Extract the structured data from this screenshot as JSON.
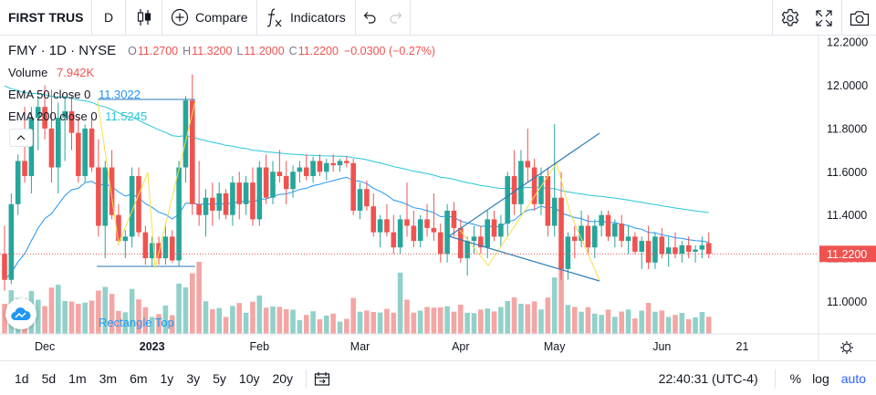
{
  "toolbar": {
    "symbol": "FIRST TRUS",
    "interval": "D",
    "compare_label": "Compare",
    "indicators_label": "Indicators",
    "icons": [
      "candlestick-icon",
      "plus-circle-icon",
      "fx-icon",
      "undo-icon",
      "redo-icon",
      "gear-icon",
      "fullscreen-icon",
      "camera-icon"
    ]
  },
  "legend": {
    "symbol": "FMY",
    "interval": "1D",
    "exchange": "NYSE",
    "open_label": "O",
    "open": "11.2700",
    "high_label": "H",
    "high": "11.3200",
    "low_label": "L",
    "low": "11.2000",
    "close_label": "C",
    "close": "11.2200",
    "change": "−0.0300 (−0.27%)",
    "volume_label": "Volume",
    "volume": "7.942K",
    "ema50_label": "EMA 50 close 0",
    "ema50": "11.3022",
    "ema200_label": "EMA 200 close 0",
    "ema200": "11.5245"
  },
  "colors": {
    "up": "#26a69a",
    "down": "#ef5350",
    "ema50": "#2196f3",
    "ema200": "#26c6da",
    "drawing_yellow": "#f5e04a",
    "drawing_blue": "#2a7ab5",
    "vol_up": "#91d1c9",
    "vol_down": "#f4a6a4"
  },
  "drawing_label": "Rectangle Top",
  "last_price_label": "11.2200",
  "chart_data": {
    "type": "candlestick",
    "symbol": "FMY",
    "y_ticks": [
      "12.2000",
      "12.0000",
      "11.8000",
      "11.6000",
      "11.4000",
      "11.2000",
      "11.0000"
    ],
    "ylim": [
      10.85,
      12.23
    ],
    "x_ticks": [
      {
        "label": "Dec",
        "i": 6
      },
      {
        "label": "2023",
        "i": 22
      },
      {
        "label": "Feb",
        "i": 38
      },
      {
        "label": "Mar",
        "i": 53
      },
      {
        "label": "Apr",
        "i": 68
      },
      {
        "label": "May",
        "i": 82
      },
      {
        "label": "Jun",
        "i": 98
      },
      {
        "label": "21",
        "i": 110
      }
    ],
    "candles": [
      [
        11.22,
        11.35,
        11.05,
        11.1
      ],
      [
        11.1,
        11.5,
        11.08,
        11.45
      ],
      [
        11.45,
        11.68,
        11.4,
        11.65
      ],
      [
        11.65,
        11.9,
        11.55,
        11.58
      ],
      [
        11.58,
        11.9,
        11.5,
        11.85
      ],
      [
        11.85,
        11.95,
        11.7,
        11.9
      ],
      [
        11.9,
        12.0,
        11.75,
        11.8
      ],
      [
        11.8,
        11.98,
        11.55,
        11.62
      ],
      [
        11.62,
        11.92,
        11.5,
        11.85
      ],
      [
        11.85,
        11.95,
        11.65,
        11.88
      ],
      [
        11.88,
        11.95,
        11.7,
        11.78
      ],
      [
        11.78,
        11.85,
        11.55,
        11.58
      ],
      [
        11.58,
        11.82,
        11.55,
        11.8
      ],
      [
        11.8,
        11.85,
        11.6,
        11.62
      ],
      [
        11.62,
        11.75,
        11.3,
        11.35
      ],
      [
        11.35,
        11.65,
        11.2,
        11.62
      ],
      [
        11.62,
        11.7,
        11.38,
        11.4
      ],
      [
        11.4,
        11.45,
        11.26,
        11.28
      ],
      [
        11.28,
        11.33,
        11.2,
        11.3
      ],
      [
        11.3,
        11.62,
        11.25,
        11.58
      ],
      [
        11.58,
        11.62,
        11.3,
        11.32
      ],
      [
        11.32,
        11.35,
        11.17,
        11.2
      ],
      [
        11.2,
        11.3,
        11.16,
        11.27
      ],
      [
        11.27,
        11.3,
        11.17,
        11.2
      ],
      [
        11.2,
        11.36,
        11.17,
        11.3
      ],
      [
        11.3,
        11.33,
        11.18,
        11.19
      ],
      [
        11.19,
        11.65,
        11.16,
        11.62
      ],
      [
        11.62,
        11.95,
        11.55,
        11.93
      ],
      [
        11.93,
        12.05,
        11.4,
        11.45
      ],
      [
        11.45,
        11.65,
        11.35,
        11.4
      ],
      [
        11.4,
        11.52,
        11.3,
        11.48
      ],
      [
        11.48,
        11.55,
        11.35,
        11.42
      ],
      [
        11.42,
        11.55,
        11.38,
        11.5
      ],
      [
        11.5,
        11.52,
        11.38,
        11.4
      ],
      [
        11.4,
        11.58,
        11.35,
        11.55
      ],
      [
        11.55,
        11.6,
        11.38,
        11.45
      ],
      [
        11.45,
        11.58,
        11.4,
        11.55
      ],
      [
        11.55,
        11.62,
        11.35,
        11.38
      ],
      [
        11.38,
        11.65,
        11.35,
        11.62
      ],
      [
        11.62,
        11.68,
        11.45,
        11.48
      ],
      [
        11.48,
        11.65,
        11.45,
        11.6
      ],
      [
        11.6,
        11.7,
        11.55,
        11.58
      ],
      [
        11.58,
        11.65,
        11.45,
        11.52
      ],
      [
        11.52,
        11.63,
        11.48,
        11.6
      ],
      [
        11.6,
        11.65,
        11.55,
        11.62
      ],
      [
        11.62,
        11.68,
        11.56,
        11.58
      ],
      [
        11.58,
        11.67,
        11.55,
        11.65
      ],
      [
        11.65,
        11.68,
        11.58,
        11.6
      ],
      [
        11.6,
        11.66,
        11.56,
        11.64
      ],
      [
        11.64,
        11.68,
        11.6,
        11.63
      ],
      [
        11.63,
        11.66,
        11.6,
        11.65
      ],
      [
        11.65,
        11.67,
        11.62,
        11.64
      ],
      [
        11.64,
        11.66,
        11.4,
        11.42
      ],
      [
        11.42,
        11.55,
        11.38,
        11.52
      ],
      [
        11.52,
        11.56,
        11.42,
        11.44
      ],
      [
        11.44,
        11.5,
        11.3,
        11.32
      ],
      [
        11.32,
        11.4,
        11.25,
        11.38
      ],
      [
        11.38,
        11.45,
        11.3,
        11.32
      ],
      [
        11.32,
        11.4,
        11.22,
        11.25
      ],
      [
        11.25,
        11.4,
        11.22,
        11.38
      ],
      [
        11.38,
        11.55,
        11.3,
        11.35
      ],
      [
        11.35,
        11.42,
        11.25,
        11.28
      ],
      [
        11.28,
        11.4,
        11.25,
        11.38
      ],
      [
        11.38,
        11.45,
        11.3,
        11.34
      ],
      [
        11.34,
        11.5,
        11.28,
        11.32
      ],
      [
        11.32,
        11.36,
        11.18,
        11.22
      ],
      [
        11.22,
        11.45,
        11.18,
        11.42
      ],
      [
        11.42,
        11.46,
        11.3,
        11.34
      ],
      [
        11.34,
        11.38,
        11.18,
        11.2
      ],
      [
        11.2,
        11.3,
        11.12,
        11.28
      ],
      [
        11.28,
        11.35,
        11.22,
        11.3
      ],
      [
        11.3,
        11.35,
        11.22,
        11.25
      ],
      [
        11.25,
        11.42,
        11.2,
        11.38
      ],
      [
        11.38,
        11.42,
        11.28,
        11.3
      ],
      [
        11.3,
        11.4,
        11.25,
        11.36
      ],
      [
        11.36,
        11.6,
        11.3,
        11.58
      ],
      [
        11.58,
        11.7,
        11.4,
        11.45
      ],
      [
        11.45,
        11.7,
        11.4,
        11.65
      ],
      [
        11.65,
        11.8,
        11.55,
        11.62
      ],
      [
        11.62,
        11.66,
        11.42,
        11.45
      ],
      [
        11.45,
        11.62,
        11.4,
        11.58
      ],
      [
        11.58,
        11.62,
        11.3,
        11.35
      ],
      [
        11.35,
        11.82,
        11.3,
        11.48
      ],
      [
        11.48,
        11.6,
        11.1,
        11.15
      ],
      [
        11.15,
        11.32,
        11.1,
        11.3
      ],
      [
        11.3,
        11.35,
        11.2,
        11.28
      ],
      [
        11.28,
        11.42,
        11.25,
        11.35
      ],
      [
        11.35,
        11.4,
        11.22,
        11.25
      ],
      [
        11.25,
        11.38,
        11.2,
        11.35
      ],
      [
        11.35,
        11.42,
        11.3,
        11.4
      ],
      [
        11.4,
        11.42,
        11.28,
        11.3
      ],
      [
        11.3,
        11.38,
        11.25,
        11.36
      ],
      [
        11.36,
        11.4,
        11.25,
        11.28
      ],
      [
        11.28,
        11.35,
        11.22,
        11.3
      ],
      [
        11.3,
        11.32,
        11.22,
        11.23
      ],
      [
        11.23,
        11.3,
        11.15,
        11.28
      ],
      [
        11.28,
        11.35,
        11.15,
        11.18
      ],
      [
        11.18,
        11.32,
        11.15,
        11.3
      ],
      [
        11.3,
        11.34,
        11.2,
        11.22
      ],
      [
        11.22,
        11.3,
        11.16,
        11.25
      ],
      [
        11.25,
        11.32,
        11.2,
        11.22
      ],
      [
        11.22,
        11.28,
        11.18,
        11.26
      ],
      [
        11.26,
        11.3,
        11.2,
        11.23
      ],
      [
        11.23,
        11.26,
        11.18,
        11.24
      ],
      [
        11.24,
        11.3,
        11.2,
        11.26
      ],
      [
        11.27,
        11.32,
        11.2,
        11.22
      ]
    ]
  }
}
